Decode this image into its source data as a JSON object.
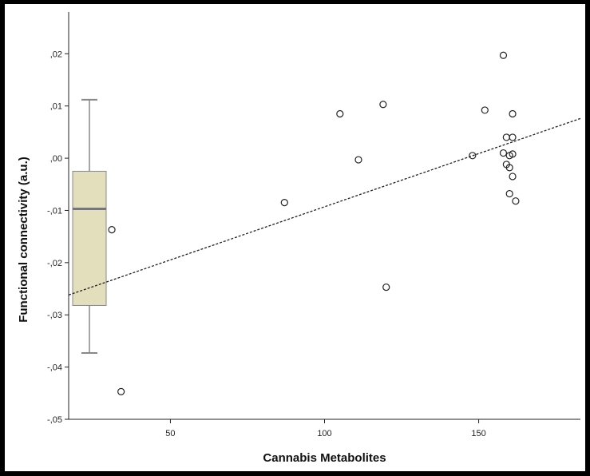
{
  "chart_data": {
    "type": "scatter",
    "title": "",
    "xlabel": "Cannabis Metabolites",
    "ylabel": "Functional connectivity (a.u.)",
    "xlim": [
      17,
      183
    ],
    "ylim": [
      -0.05,
      0.028
    ],
    "x_ticks": [
      50,
      100,
      150
    ],
    "x_tick_labels": [
      "50",
      "100",
      "150"
    ],
    "y_ticks": [
      0.02,
      0.01,
      0.0,
      -0.01,
      -0.02,
      -0.03,
      -0.04,
      -0.05
    ],
    "y_tick_labels": [
      ",02",
      ",01",
      ",00",
      "-,01",
      "-,02",
      "-,03",
      "-,04",
      "-,05"
    ],
    "grid": false,
    "points": [
      {
        "x": 31,
        "y": -0.0137
      },
      {
        "x": 34,
        "y": -0.0447
      },
      {
        "x": 87,
        "y": -0.0085
      },
      {
        "x": 105,
        "y": 0.0085
      },
      {
        "x": 111,
        "y": -0.0003
      },
      {
        "x": 119,
        "y": 0.0103
      },
      {
        "x": 120,
        "y": -0.0247
      },
      {
        "x": 148,
        "y": 0.0005
      },
      {
        "x": 152,
        "y": 0.0092
      },
      {
        "x": 158,
        "y": 0.0197
      },
      {
        "x": 158,
        "y": 0.001
      },
      {
        "x": 159,
        "y": 0.004
      },
      {
        "x": 159,
        "y": -0.0012
      },
      {
        "x": 160,
        "y": 0.0005
      },
      {
        "x": 160,
        "y": -0.0018
      },
      {
        "x": 160,
        "y": -0.0068
      },
      {
        "x": 161,
        "y": 0.0085
      },
      {
        "x": 161,
        "y": 0.004
      },
      {
        "x": 161,
        "y": 0.0008
      },
      {
        "x": 161,
        "y": -0.0035
      },
      {
        "x": 162,
        "y": -0.0082
      }
    ],
    "trend_line": {
      "style": "dashed",
      "x": [
        17,
        183
      ],
      "y": [
        -0.0262,
        0.0076
      ]
    },
    "boxplot": {
      "fill_color": "#e3dfbd",
      "stroke_color": "#888888",
      "whisker_low": -0.0373,
      "q1": -0.0282,
      "median": -0.0097,
      "q3": -0.0025,
      "whisker_high": 0.0112
    },
    "colors": {
      "background": "#000000",
      "plot_background": "#ffffff",
      "point": "#222222",
      "trend": "#222222"
    }
  }
}
